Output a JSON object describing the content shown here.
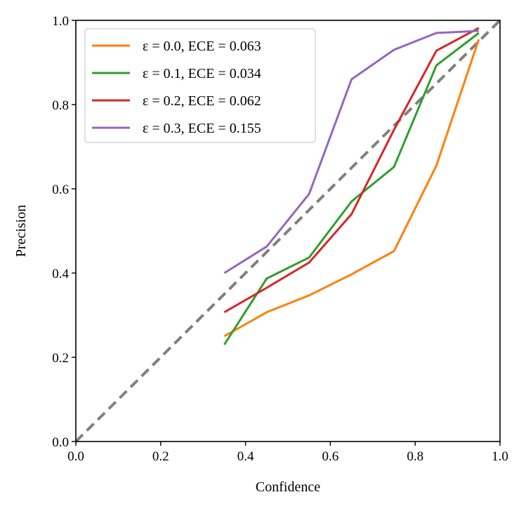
{
  "chart_data": {
    "type": "line",
    "title": "",
    "xlabel": "Confidence",
    "ylabel": "Precision",
    "xlim": [
      0.0,
      1.0
    ],
    "ylim": [
      0.0,
      1.0
    ],
    "xticks": [
      "0.0",
      "0.2",
      "0.4",
      "0.6",
      "0.8",
      "1.0"
    ],
    "yticks": [
      "0.0",
      "0.2",
      "0.4",
      "0.6",
      "0.8",
      "1.0"
    ],
    "grid": false,
    "legend_position": "top-left",
    "reference_line": {
      "style": "dashed",
      "color": "#808080",
      "points": [
        [
          0,
          0
        ],
        [
          1,
          1
        ]
      ]
    },
    "x": [
      0.35,
      0.45,
      0.55,
      0.65,
      0.75,
      0.85,
      0.95
    ],
    "series": [
      {
        "name": "ε = 0.0, ECE = 0.063",
        "color": "#ff7f0e",
        "values": [
          0.25,
          0.307,
          0.347,
          0.397,
          0.452,
          0.655,
          0.955
        ]
      },
      {
        "name": "ε = 0.1, ECE = 0.034",
        "color": "#2ca02c",
        "values": [
          0.23,
          0.387,
          0.437,
          0.57,
          0.652,
          0.893,
          0.97
        ]
      },
      {
        "name": "ε = 0.2, ECE = 0.062",
        "color": "#d62728",
        "values": [
          0.307,
          0.365,
          0.425,
          0.54,
          0.74,
          0.928,
          0.982
        ]
      },
      {
        "name": "ε = 0.3, ECE = 0.155",
        "color": "#9467bd",
        "values": [
          0.4,
          0.463,
          0.588,
          0.86,
          0.93,
          0.97,
          0.975
        ]
      }
    ]
  }
}
